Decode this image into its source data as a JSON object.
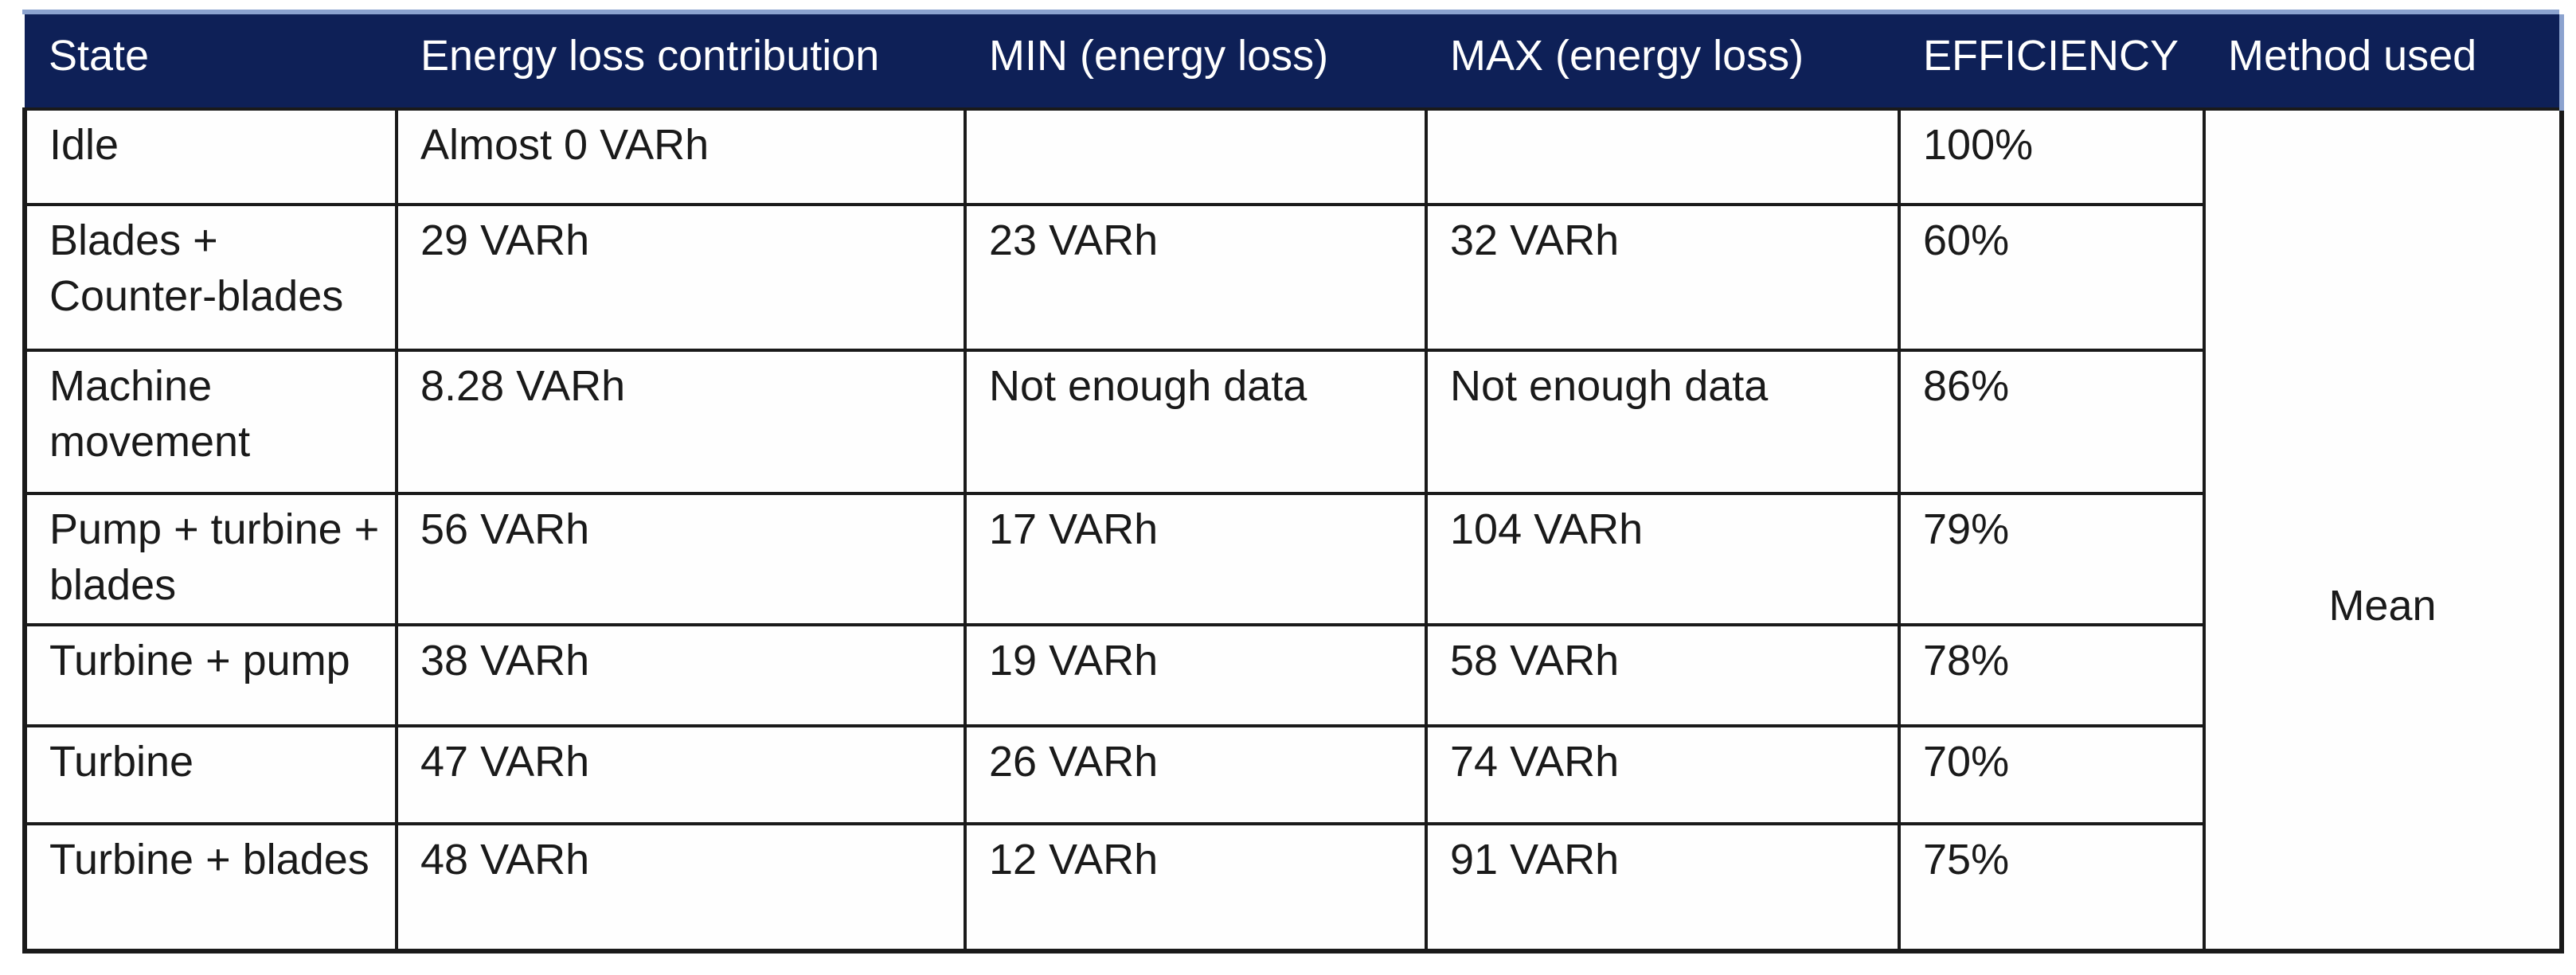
{
  "chart_data": {
    "type": "table",
    "columns": [
      "State",
      "Energy loss contribution",
      "MIN (energy loss)",
      "MAX (energy loss)",
      "EFFICIENCY",
      "Method used"
    ],
    "rows": [
      {
        "state": "Idle",
        "energy_loss_contribution": "Almost 0 VARh",
        "min_energy_loss": "",
        "max_energy_loss": "",
        "efficiency": "100%"
      },
      {
        "state": "Blades + Counter-blades",
        "energy_loss_contribution": "29 VARh",
        "min_energy_loss": "23 VARh",
        "max_energy_loss": "32 VARh",
        "efficiency": "60%"
      },
      {
        "state": "Machine movement",
        "energy_loss_contribution": "8.28 VARh",
        "min_energy_loss": "Not enough data",
        "max_energy_loss": "Not enough data",
        "efficiency": "86%"
      },
      {
        "state": "Pump + turbine + blades",
        "energy_loss_contribution": "56 VARh",
        "min_energy_loss": "17 VARh",
        "max_energy_loss": "104 VARh",
        "efficiency": "79%"
      },
      {
        "state": "Turbine + pump",
        "energy_loss_contribution": "38 VARh",
        "min_energy_loss": "19 VARh",
        "max_energy_loss": "58 VARh",
        "efficiency": "78%"
      },
      {
        "state": "Turbine",
        "energy_loss_contribution": "47 VARh",
        "min_energy_loss": "26 VARh",
        "max_energy_loss": "74 VARh",
        "efficiency": "70%"
      },
      {
        "state": "Turbine + blades",
        "energy_loss_contribution": "48 VARh",
        "min_energy_loss": "12 VARh",
        "max_energy_loss": "91 VARh",
        "efficiency": "75%"
      }
    ],
    "method_used": "Mean",
    "layout_hints": {
      "header_style": "solid navy band, white text, thin light-blue strip above",
      "method_used_column": "single merged cell spanning all 7 data rows",
      "grid": "black cell borders on body rows only"
    },
    "colors": {
      "header_bg": "#0E2057",
      "header_text": "#FFFFFF",
      "accent_strip": "#8CA3CF",
      "border": "#1A1A1A",
      "body_text": "#1A1A1A",
      "body_bg": "#FEFEFE"
    }
  }
}
